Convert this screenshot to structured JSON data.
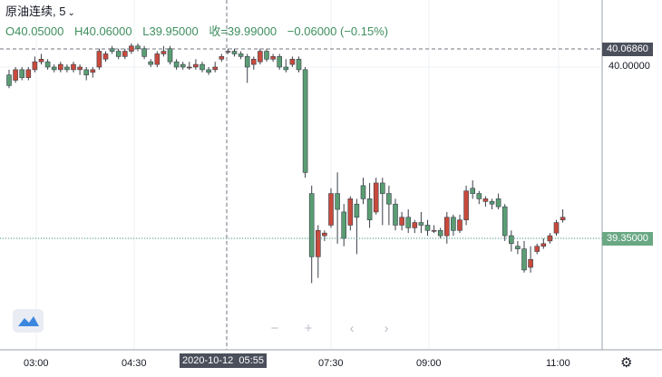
{
  "legend": {
    "symbol": "原油连续",
    "interval": "5",
    "open_label": "O",
    "open": "40.05000",
    "high_label": "H",
    "high": "40.06000",
    "low_label": "L",
    "low": "39.95000",
    "close_label": "收",
    "close": "=39.99000",
    "change": "−0.06000",
    "change_pct": "(−0.15%)"
  },
  "price_axis": {
    "label_top": "40.00000",
    "crosshair_price": "40.06860",
    "last_price": "39.35000"
  },
  "time_axis": {
    "labels": [
      "03:00",
      "04:30",
      "05:55",
      "07:30",
      "09:00",
      "11:00"
    ],
    "crosshair_date": "2020-10-12"
  },
  "nav": {
    "zoom_out": "−",
    "zoom_in": "+",
    "scroll_left": "‹",
    "scroll_right": "›"
  },
  "icons": {
    "logo": "tradingview-logo-icon",
    "settings": "gear-icon",
    "dropdown": "chevron-down-icon"
  },
  "colors": {
    "up": "#c94a3c",
    "down": "#5a9d73",
    "crosshair_tag": "#4a4f5b",
    "last_price_tag": "#6aa884",
    "grid": "#eef0f3"
  },
  "chart_data": {
    "type": "candlestick",
    "y_axis_ticks": [
      "40.00000"
    ],
    "x_axis_ticks": [
      "03:00",
      "04:30",
      "05:55",
      "07:30",
      "09:00",
      "11:00"
    ],
    "crosshair": {
      "price": 40.0686,
      "time": "2020-10-12 05:55"
    },
    "last_price": 39.35,
    "ylim": [
      39.18,
      40.15
    ],
    "candles": [
      [
        39.97,
        39.93,
        39.99,
        39.92
      ],
      [
        39.95,
        39.99,
        40.0,
        39.94
      ],
      [
        39.99,
        39.96,
        40.0,
        39.95
      ],
      [
        39.96,
        39.99,
        40.0,
        39.95
      ],
      [
        39.99,
        40.02,
        40.04,
        39.98
      ],
      [
        40.02,
        40.03,
        40.05,
        40.01
      ],
      [
        40.02,
        40.0,
        40.03,
        39.99
      ],
      [
        40.0,
        39.99,
        40.01,
        39.98
      ],
      [
        39.99,
        40.01,
        40.02,
        39.98
      ],
      [
        40.0,
        39.99,
        40.01,
        39.98
      ],
      [
        39.99,
        40.01,
        40.02,
        39.98
      ],
      [
        39.99,
        40.0,
        40.01,
        39.97
      ],
      [
        39.99,
        39.97,
        40.0,
        39.95
      ],
      [
        39.98,
        39.99,
        40.0,
        39.96
      ],
      [
        40.0,
        40.06,
        40.07,
        39.99
      ],
      [
        40.03,
        40.05,
        40.06,
        40.02
      ],
      [
        40.07,
        40.06,
        40.08,
        40.05
      ],
      [
        40.06,
        40.04,
        40.07,
        40.03
      ],
      [
        40.04,
        40.06,
        40.07,
        40.03
      ],
      [
        40.06,
        40.08,
        40.09,
        40.05
      ],
      [
        40.08,
        40.07,
        40.09,
        40.06
      ],
      [
        40.07,
        40.04,
        40.08,
        40.03
      ],
      [
        40.02,
        40.01,
        40.03,
        40.0
      ],
      [
        40.01,
        40.05,
        40.06,
        40.0
      ],
      [
        40.05,
        40.06,
        40.08,
        40.04
      ],
      [
        40.07,
        40.02,
        40.08,
        40.01
      ],
      [
        40.02,
        40.0,
        40.03,
        39.99
      ],
      [
        40.01,
        40.0,
        40.02,
        39.99
      ],
      [
        40.0,
        40.0,
        40.02,
        39.99
      ],
      [
        40.0,
        40.01,
        40.03,
        39.99
      ],
      [
        40.01,
        39.99,
        40.02,
        39.98
      ],
      [
        39.99,
        39.98,
        40.0,
        39.97
      ],
      [
        39.99,
        40.0,
        40.02,
        39.98
      ],
      [
        40.03,
        40.04,
        40.05,
        40.02
      ],
      [
        40.06,
        40.06,
        40.07,
        40.05
      ],
      [
        40.06,
        40.05,
        40.07,
        40.04
      ],
      [
        40.05,
        40.04,
        40.06,
        40.03
      ],
      [
        40.04,
        40.0,
        40.05,
        39.94
      ],
      [
        40.01,
        40.03,
        40.04,
        39.99
      ],
      [
        40.02,
        40.06,
        40.07,
        40.01
      ],
      [
        40.06,
        40.03,
        40.07,
        40.02
      ],
      [
        40.03,
        40.04,
        40.05,
        40.02
      ],
      [
        40.04,
        40.0,
        40.05,
        39.99
      ],
      [
        40.0,
        39.99,
        40.03,
        39.98
      ],
      [
        40.01,
        40.03,
        40.04,
        40.0
      ],
      [
        40.03,
        39.99,
        40.04,
        39.98
      ],
      [
        39.99,
        39.6,
        40.0,
        39.58
      ],
      [
        39.52,
        39.28,
        39.55,
        39.18
      ],
      [
        39.28,
        39.38,
        39.4,
        39.2
      ],
      [
        39.36,
        39.37,
        39.38,
        39.34
      ],
      [
        39.4,
        39.52,
        39.54,
        39.39
      ],
      [
        39.52,
        39.46,
        39.6,
        39.33
      ],
      [
        39.45,
        39.35,
        39.48,
        39.32
      ],
      [
        39.4,
        39.5,
        39.51,
        39.38
      ],
      [
        39.48,
        39.43,
        39.5,
        39.29
      ],
      [
        39.55,
        39.5,
        39.58,
        39.48
      ],
      [
        39.5,
        39.42,
        39.56,
        39.39
      ],
      [
        39.45,
        39.56,
        39.58,
        39.44
      ],
      [
        39.56,
        39.52,
        39.58,
        39.4
      ],
      [
        39.52,
        39.48,
        39.55,
        39.4
      ],
      [
        39.48,
        39.4,
        39.5,
        39.38
      ],
      [
        39.4,
        39.43,
        39.45,
        39.38
      ],
      [
        39.43,
        39.39,
        39.46,
        39.37
      ],
      [
        39.39,
        39.41,
        39.42,
        39.37
      ],
      [
        39.41,
        39.4,
        39.45,
        39.37
      ],
      [
        39.4,
        39.38,
        39.42,
        39.36
      ],
      [
        39.38,
        39.38,
        39.4,
        39.37
      ],
      [
        39.38,
        39.36,
        39.39,
        39.35
      ],
      [
        39.36,
        39.43,
        39.45,
        39.33
      ],
      [
        39.43,
        39.38,
        39.44,
        39.36
      ],
      [
        39.38,
        39.42,
        39.44,
        39.37
      ],
      [
        39.42,
        39.53,
        39.55,
        39.4
      ],
      [
        39.54,
        39.52,
        39.57,
        39.5
      ],
      [
        39.52,
        39.5,
        39.53,
        39.48
      ],
      [
        39.49,
        39.5,
        39.51,
        39.47
      ],
      [
        39.49,
        39.48,
        39.5,
        39.46
      ],
      [
        39.5,
        39.47,
        39.52,
        39.46
      ],
      [
        39.47,
        39.36,
        39.48,
        39.34
      ],
      [
        39.36,
        39.33,
        39.38,
        39.3
      ],
      [
        39.32,
        39.31,
        39.34,
        39.29
      ],
      [
        39.31,
        39.23,
        39.34,
        39.22
      ],
      [
        39.24,
        39.27,
        39.32,
        39.22
      ],
      [
        39.3,
        39.32,
        39.33,
        39.29
      ],
      [
        39.32,
        39.33,
        39.35,
        39.31
      ],
      [
        39.34,
        39.36,
        39.37,
        39.33
      ],
      [
        39.37,
        39.41,
        39.42,
        39.36
      ],
      [
        39.42,
        39.43,
        39.46,
        39.41
      ]
    ]
  }
}
